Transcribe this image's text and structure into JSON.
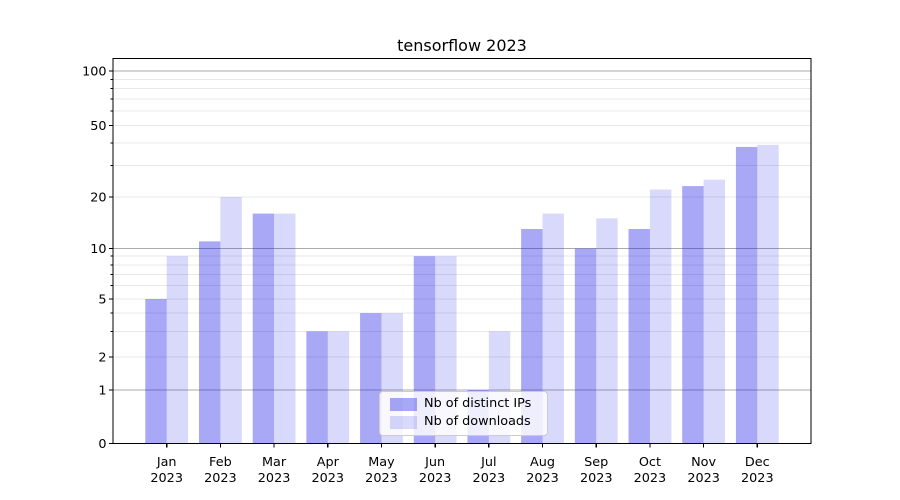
{
  "title": "tensorflow 2023",
  "legend": {
    "position": "lower center",
    "items": [
      {
        "label": "Nb of distinct IPs"
      },
      {
        "label": "Nb of downloads"
      }
    ]
  },
  "colors": {
    "background": "#ffffff",
    "bar_distinct_ips": "rgba(20,20,230,0.37)",
    "bar_downloads": "rgba(20,20,230,0.16)",
    "bar_distinct_ips_hex_on_white": "#a9a9f7",
    "bar_downloads_hex_on_white": "#d9d9f9",
    "grid_major": "#ababab",
    "grid_minor": "#e8e8e8",
    "axis_spine": "#000000",
    "tick": "#000000",
    "text": "#000000",
    "legend_border": "#cccccc"
  },
  "chart_data": {
    "type": "bar",
    "title": "tensorflow 2023",
    "xlabel": "",
    "ylabel": "",
    "year": "2023",
    "months": [
      "Jan",
      "Feb",
      "Mar",
      "Apr",
      "May",
      "Jun",
      "Jul",
      "Aug",
      "Sep",
      "Oct",
      "Nov",
      "Dec"
    ],
    "categories": [
      "Jan 2023",
      "Feb 2023",
      "Mar 2023",
      "Apr 2023",
      "May 2023",
      "Jun 2023",
      "Jul 2023",
      "Aug 2023",
      "Sep 2023",
      "Oct 2023",
      "Nov 2023",
      "Dec 2023"
    ],
    "series": [
      {
        "name": "Nb of distinct IPs",
        "values": [
          5,
          11,
          16,
          3,
          4,
          9,
          1,
          13,
          10,
          13,
          23,
          38
        ]
      },
      {
        "name": "Nb of downloads",
        "values": [
          9,
          20,
          16,
          3,
          4,
          9,
          3,
          16,
          15,
          22,
          25,
          39
        ]
      }
    ],
    "yscale": "symlog",
    "ylim": [
      0,
      118
    ],
    "y_ticks": [
      0,
      1,
      2,
      5,
      10,
      20,
      50,
      100
    ],
    "y_major_ticks": [
      1,
      10,
      100
    ],
    "y_minor_unlabeled_ticks": [
      3,
      4,
      6,
      7,
      8,
      9,
      30,
      40,
      60,
      70,
      80,
      90
    ],
    "grid": "horizontal, major and minor",
    "legend_position": "lower center"
  }
}
